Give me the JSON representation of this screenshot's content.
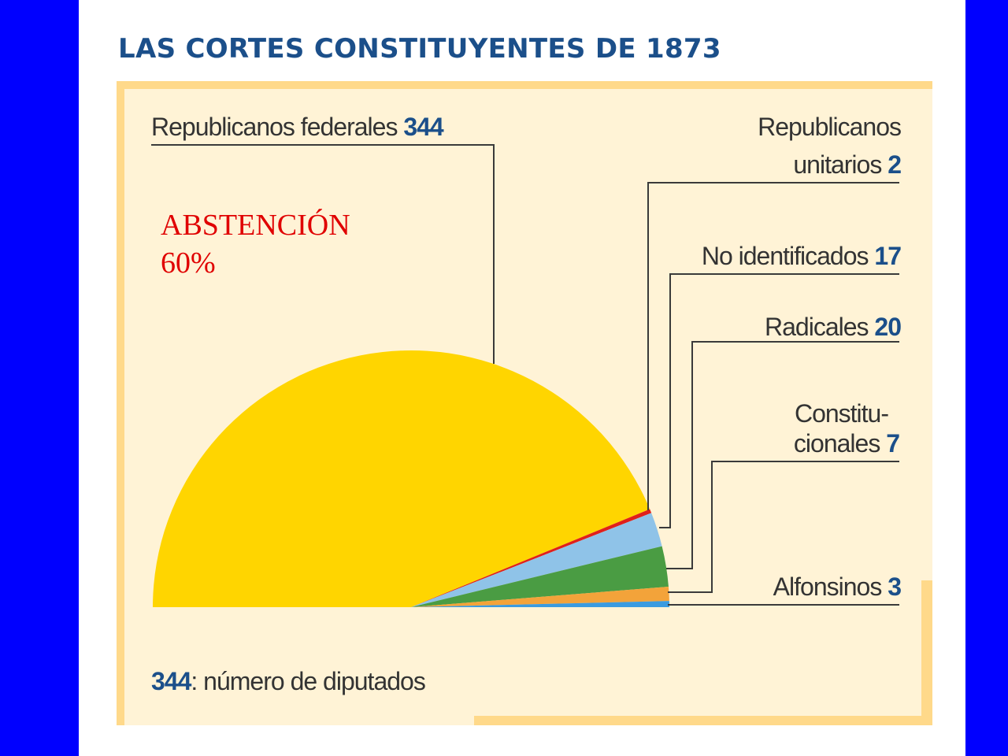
{
  "slide": {
    "background_color": "#0000ff",
    "annotation_line1": "ABSTENCIÓN",
    "annotation_line2": "60%",
    "annotation_color": "#e00000"
  },
  "chart_data": {
    "type": "pie",
    "shape": "semicircle",
    "title": "LAS CORTES CONSTITUYENTES DE 1873",
    "unit_note_value": "344",
    "unit_note_text": ": número de diputados",
    "series": [
      {
        "name": "Republicanos federales",
        "value": 344,
        "color": "#ffd500"
      },
      {
        "name": "Republicanos unitarios",
        "value": 2,
        "color": "#e0201b"
      },
      {
        "name": "No identificados",
        "value": 17,
        "color": "#8fc3e8"
      },
      {
        "name": "Radicales",
        "value": 20,
        "color": "#4a9c43"
      },
      {
        "name": "Constitucionales",
        "value": 7,
        "color": "#f3a33a"
      },
      {
        "name": "Alfonsinos",
        "value": 3,
        "color": "#3a9be0"
      }
    ],
    "labels": {
      "federales_name": "Republicanos federales",
      "unitarios_line1": "Republicanos",
      "unitarios_line2": "unitarios",
      "no_identificados_name": "No identificados",
      "radicales_name": "Radicales",
      "constitucionales_line1": "Constitu-",
      "constitucionales_line2": "cionales",
      "alfonsinos_name": "Alfonsinos"
    }
  }
}
